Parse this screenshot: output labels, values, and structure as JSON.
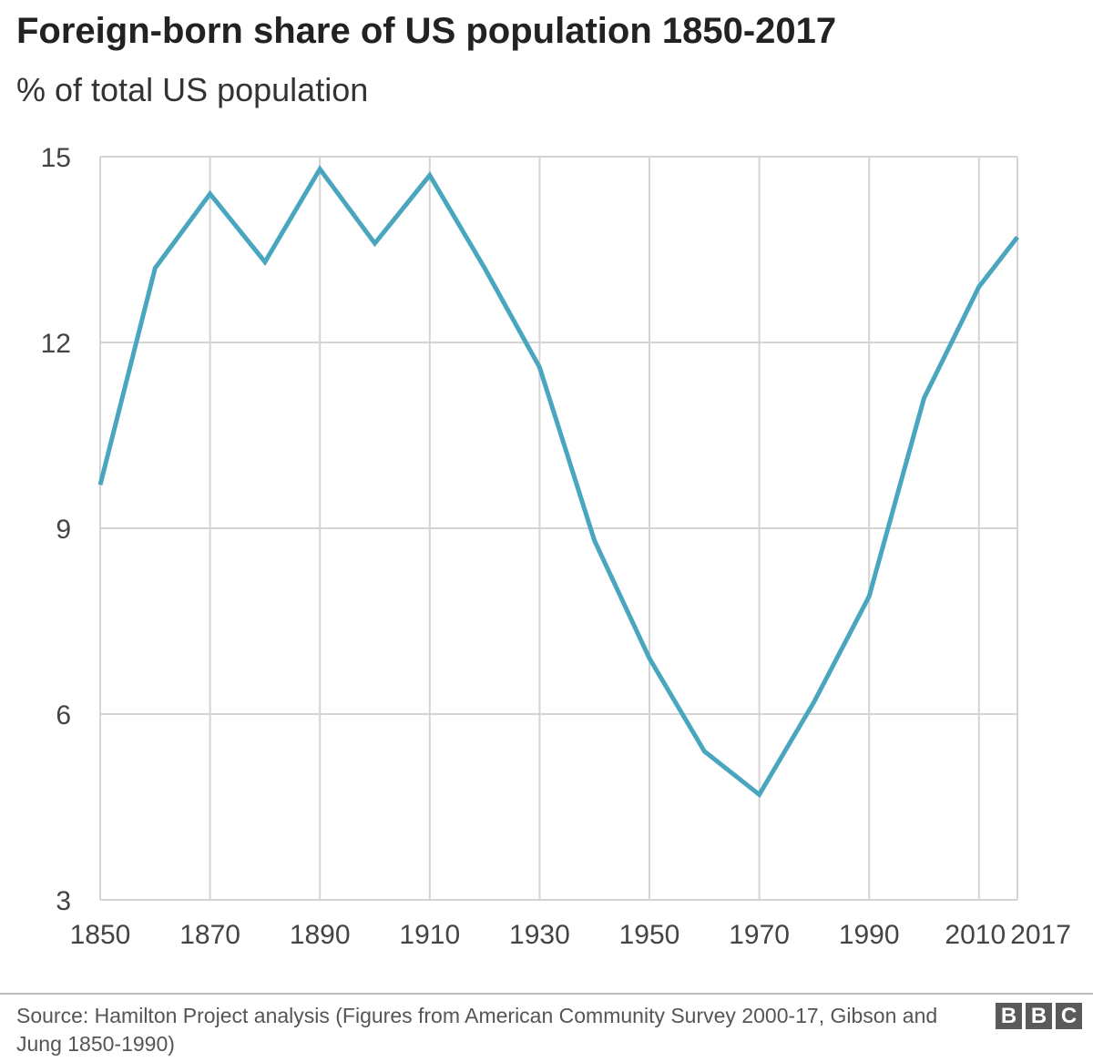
{
  "chart_data": {
    "type": "line",
    "title": "Foreign-born share of US population 1850-2017",
    "subtitle": "% of total US population",
    "xlabel": "",
    "ylabel": "",
    "xlim": [
      1850,
      2017
    ],
    "ylim": [
      3,
      15
    ],
    "x_ticks": [
      1850,
      1870,
      1890,
      1910,
      1930,
      1950,
      1970,
      1990,
      2010,
      2017
    ],
    "x_tick_labels": [
      "1850",
      "1870",
      "1890",
      "1910",
      "1930",
      "1950",
      "1970",
      "1990",
      "2010",
      "2017"
    ],
    "x_gridlines": [
      1850,
      1870,
      1890,
      1910,
      1930,
      1950,
      1970,
      1990,
      2010,
      2017
    ],
    "y_ticks": [
      3,
      6,
      9,
      12,
      15
    ],
    "y_tick_labels": [
      "3",
      "6",
      "9",
      "12",
      "15"
    ],
    "grid": true,
    "line_color": "#4aa6bf",
    "grid_color": "#d4d4d4",
    "series": [
      {
        "x": [
          1850,
          1860,
          1870,
          1880,
          1890,
          1900,
          1910,
          1920,
          1930,
          1940,
          1950,
          1960,
          1970,
          1980,
          1990,
          2000,
          2010,
          2017
        ],
        "values": [
          9.7,
          13.2,
          14.4,
          13.3,
          14.8,
          13.6,
          14.7,
          13.2,
          11.6,
          8.8,
          6.9,
          5.4,
          4.7,
          6.2,
          7.9,
          11.1,
          12.9,
          13.7
        ]
      }
    ]
  },
  "footer": {
    "source": "Source: Hamilton Project analysis (Figures from American Community Survey 2000-17, Gibson and Jung 1850-1990)",
    "logo_letters": [
      "B",
      "B",
      "C"
    ]
  }
}
